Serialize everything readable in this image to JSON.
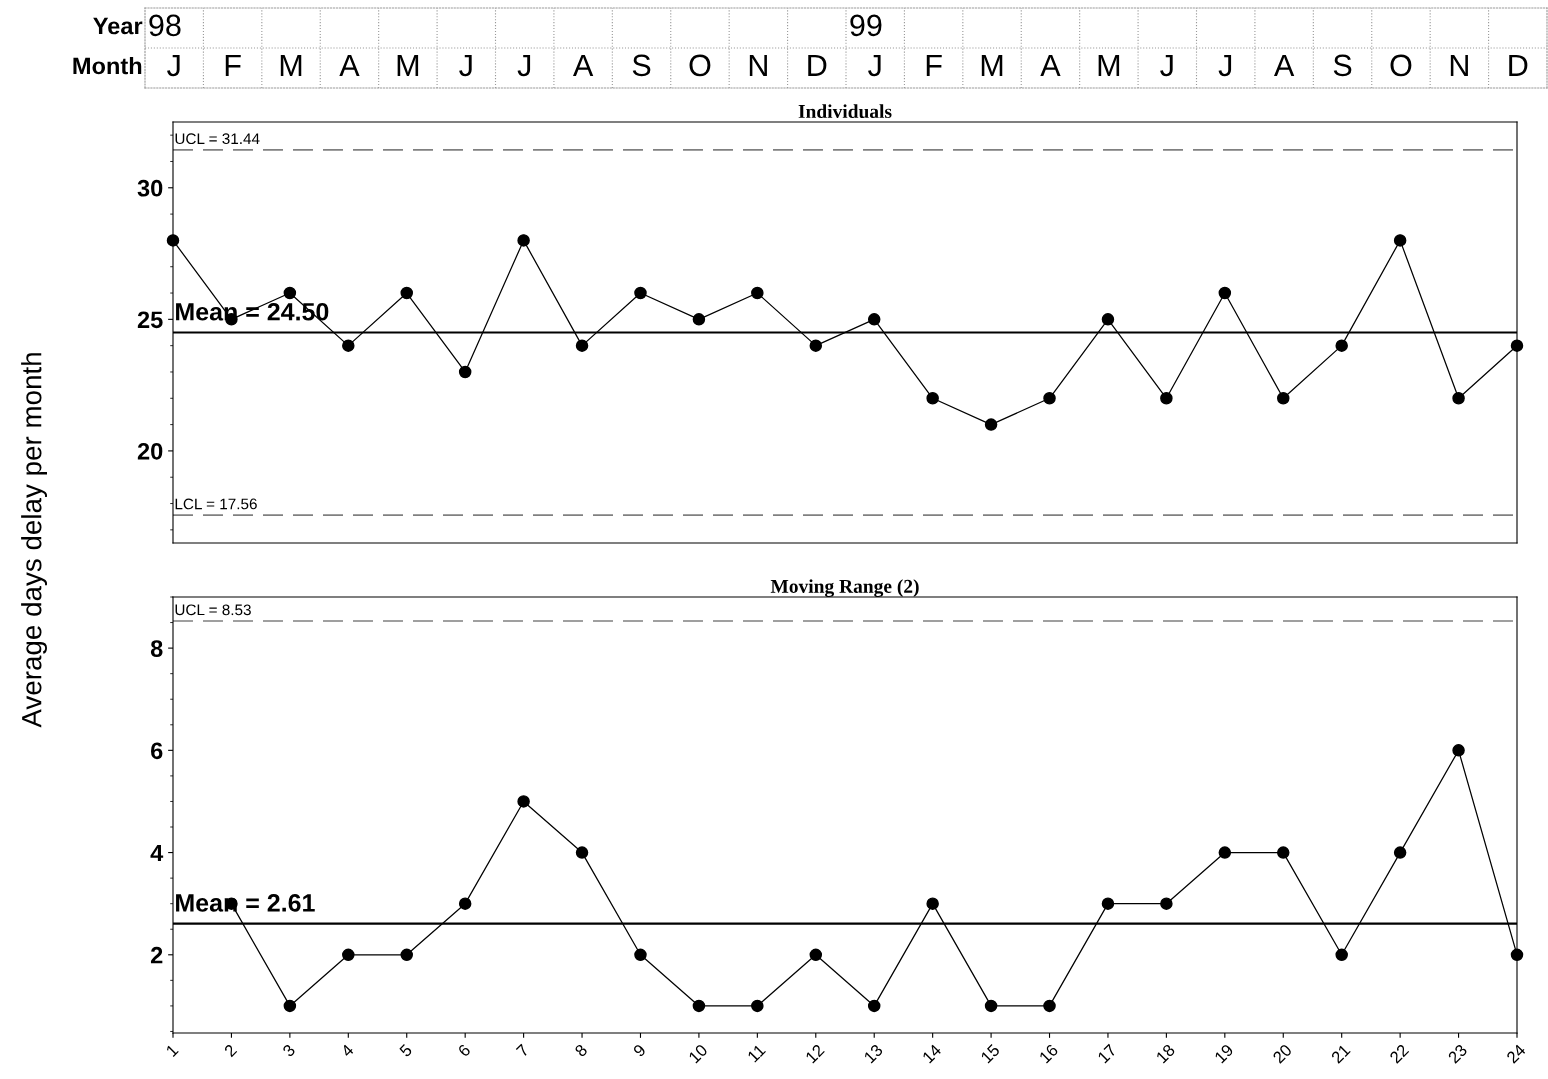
{
  "chart_data": [
    {
      "type": "heatmap",
      "categories": [
        null,
        null,
        null,
        null,
        null,
        null,
        null,
        null,
        null,
        null,
        null,
        null,
        null,
        null,
        null,
        null,
        null,
        null,
        null,
        null,
        null,
        null,
        null,
        null
      ],
      "y_categories": [
        "Year",
        "Month"
      ],
      "cells": [
        [
          null,
          null,
          null,
          null,
          null,
          null,
          null,
          null,
          null,
          null,
          null,
          null,
          null,
          null,
          null,
          null,
          null,
          null,
          null,
          null,
          null,
          null,
          null,
          null
        ],
        [
          null,
          null,
          null,
          null,
          null,
          null,
          null,
          null,
          null,
          null,
          null,
          null,
          null,
          null,
          null,
          null,
          null,
          null,
          null,
          null,
          null,
          null,
          null,
          null
        ]
      ],
      "cell_labels": [
        [
          "98",
          null,
          null,
          null,
          null,
          null,
          null,
          null,
          null,
          null,
          null,
          null,
          "99",
          null,
          null,
          null,
          null,
          null,
          null,
          null,
          null,
          null,
          null,
          null
        ],
        [
          "J",
          "F",
          "M",
          "A",
          "M",
          "J",
          "J",
          "A",
          "S",
          "O",
          "N",
          "D",
          "J",
          "F",
          "M",
          "A",
          "M",
          "J",
          "J",
          "A",
          "S",
          "O",
          "N",
          "D"
        ]
      ]
    },
    {
      "type": "line",
      "title": "Individuals",
      "ylabel": "Average days delay per month",
      "x": [
        1,
        2,
        3,
        4,
        5,
        6,
        7,
        8,
        9,
        10,
        11,
        12,
        13,
        14,
        15,
        16,
        17,
        18,
        19,
        20,
        21,
        22,
        23,
        24
      ],
      "series": [
        {
          "color": "#000000",
          "values": [
            28,
            25,
            26,
            24,
            26,
            23,
            28,
            24,
            26,
            25,
            26,
            24,
            25,
            22,
            21,
            22,
            25,
            22,
            26,
            22,
            24,
            28,
            22,
            24
          ]
        }
      ],
      "xlim": [
        1,
        24
      ],
      "ylim": [
        16.5,
        32.5
      ],
      "yticks": [
        20,
        25,
        30
      ],
      "tick_labels": "y",
      "marker": "circle",
      "line_style": "solid",
      "ref_lines": [
        {
          "axis": "y",
          "value": 31.44,
          "label": "UCL = 31.44",
          "color": "#808080",
          "line_style": "dashed"
        },
        {
          "axis": "y",
          "value": 24.5,
          "label": "Mean = 24.50",
          "color": "#000000",
          "line_style": "solid"
        },
        {
          "axis": "y",
          "value": 17.56,
          "label": "LCL = 17.56",
          "color": "#808080",
          "line_style": "dashed"
        }
      ]
    },
    {
      "type": "line",
      "title": "Moving Range (2)",
      "x": [
        2,
        3,
        4,
        5,
        6,
        7,
        8,
        9,
        10,
        11,
        12,
        13,
        14,
        15,
        16,
        17,
        18,
        19,
        20,
        21,
        22,
        23,
        24
      ],
      "series": [
        {
          "color": "#000000",
          "values": [
            3,
            1,
            2,
            2,
            3,
            5,
            4,
            2,
            1,
            1,
            2,
            1,
            3,
            1,
            1,
            3,
            3,
            4,
            4,
            2,
            4,
            6,
            2
          ]
        }
      ],
      "xlim": [
        1,
        24
      ],
      "xticks": [
        1,
        2,
        3,
        4,
        5,
        6,
        7,
        8,
        9,
        10,
        11,
        12,
        13,
        14,
        15,
        16,
        17,
        18,
        19,
        20,
        21,
        22,
        23,
        24
      ],
      "ylim": [
        0.47,
        9
      ],
      "yticks": [
        2,
        4,
        6,
        8
      ],
      "marker": "circle",
      "line_style": "solid",
      "ref_lines": [
        {
          "axis": "y",
          "value": 8.53,
          "label": "UCL = 8.53",
          "color": "#808080",
          "line_style": "dashed"
        },
        {
          "axis": "y",
          "value": 2.61,
          "label": "Mean = 2.61",
          "color": "#000000",
          "line_style": "solid"
        }
      ]
    }
  ]
}
